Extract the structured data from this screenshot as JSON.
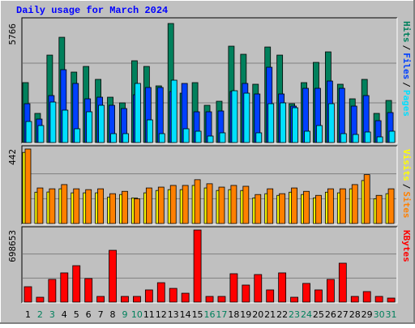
{
  "chart_data": [
    {
      "type": "bar",
      "title": "Daily usage for March 2024",
      "ylim": [
        0,
        5766
      ],
      "yticks": [
        5766
      ],
      "legend_separator": "/",
      "series": [
        {
          "name": "Hits",
          "color": "#00805c",
          "values": [
            2903,
            1412,
            4235,
            5098,
            3412,
            3686,
            3059,
            2196,
            1922,
            3961,
            3686,
            2745,
            5766,
            2392,
            2902,
            1804,
            2000,
            4667,
            4275,
            2824,
            4627,
            4235,
            1882,
            2902,
            3882,
            4392,
            2824,
            2118,
            3059,
            1412,
            2039
          ]
        },
        {
          "name": "Files",
          "color": "#0040ff",
          "values": [
            1882,
            1137,
            2275,
            3529,
            2863,
            2118,
            2196,
            1804,
            1647,
            2314,
            2667,
            2667,
            2471,
            2863,
            1490,
            1490,
            1529,
            2471,
            2863,
            2353,
            3647,
            2353,
            1765,
            2627,
            2627,
            2980,
            2627,
            1765,
            2275,
            1059,
            1451
          ]
        },
        {
          "name": "Pages",
          "color": "#00e0ff",
          "values": [
            1020,
            824,
            1961,
            1569,
            667,
            1490,
            1804,
            431,
            431,
            2863,
            1098,
            431,
            3020,
            667,
            549,
            314,
            471,
            2510,
            2392,
            471,
            1882,
            1922,
            1686,
            549,
            824,
            1882,
            431,
            392,
            510,
            275,
            549
          ]
        }
      ]
    },
    {
      "type": "bar",
      "ylim": [
        0,
        442
      ],
      "yticks": [
        442
      ],
      "legend_separator": "/",
      "series": [
        {
          "name": "Visits",
          "color": "#ffff00",
          "values": [
            422,
            186,
            187,
            206,
            182,
            182,
            182,
            157,
            172,
            152,
            182,
            196,
            201,
            201,
            226,
            211,
            196,
            201,
            196,
            152,
            177,
            167,
            186,
            172,
            152,
            186,
            182,
            206,
            255,
            147,
            177
          ]
        },
        {
          "name": "Sites",
          "color": "#ff8000",
          "values": [
            442,
            211,
            206,
            231,
            206,
            201,
            206,
            177,
            191,
            147,
            211,
            216,
            226,
            226,
            260,
            236,
            216,
            226,
            221,
            172,
            206,
            177,
            211,
            191,
            167,
            206,
            206,
            231,
            290,
            167,
            206
          ]
        }
      ]
    },
    {
      "type": "bar",
      "ylim": [
        0,
        698653
      ],
      "yticks": [
        698653
      ],
      "categories": [
        "1",
        "2",
        "3",
        "4",
        "5",
        "6",
        "7",
        "8",
        "9",
        "10",
        "11",
        "12",
        "13",
        "14",
        "15",
        "16",
        "17",
        "18",
        "19",
        "20",
        "21",
        "22",
        "23",
        "24",
        "25",
        "26",
        "27",
        "28",
        "29",
        "30",
        "31"
      ],
      "category_colors": [
        "#000000",
        "#00805c",
        "#00805c",
        "#000000",
        "#000000",
        "#000000",
        "#000000",
        "#000000",
        "#00805c",
        "#00805c",
        "#000000",
        "#000000",
        "#000000",
        "#000000",
        "#000000",
        "#00805c",
        "#00805c",
        "#000000",
        "#000000",
        "#000000",
        "#000000",
        "#000000",
        "#00805c",
        "#00805c",
        "#000000",
        "#000000",
        "#000000",
        "#000000",
        "#000000",
        "#00805c",
        "#00805c"
      ],
      "series": [
        {
          "name": "KBytes",
          "color": "#ff0000",
          "values": [
            149000,
            47000,
            220000,
            283000,
            353000,
            228000,
            55000,
            502000,
            55000,
            55000,
            118000,
            188000,
            133000,
            86000,
            698653,
            55000,
            55000,
            275000,
            165000,
            267000,
            118000,
            283000,
            47000,
            181000,
            118000,
            220000,
            377000,
            55000,
            102000,
            55000,
            39000
          ]
        }
      ]
    }
  ]
}
